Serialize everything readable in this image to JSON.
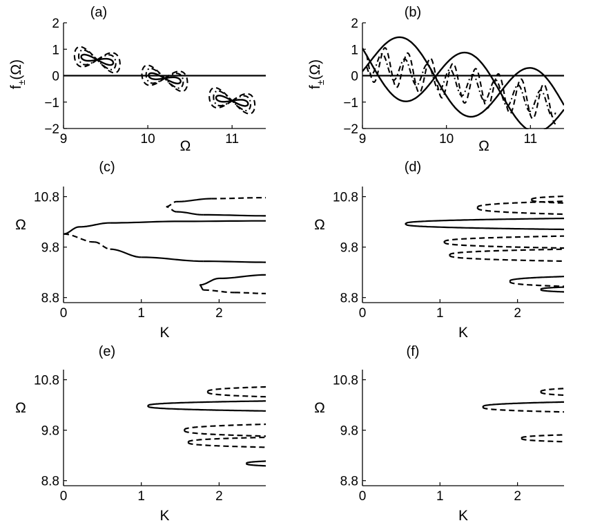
{
  "figure": {
    "panel_titles": [
      "(a)",
      "(b)",
      "(c)",
      "(d)",
      "(e)",
      "(f)"
    ]
  },
  "chart_data": [
    {
      "id": "a",
      "type": "line",
      "title": "(a)",
      "xlabel": "Ω",
      "ylabel": "f±(Ω)",
      "ylabel_main": "f",
      "ylabel_sub": "±",
      "ylabel_arg": "(Ω)",
      "xlim": [
        9,
        11.4
      ],
      "ylim": [
        -2,
        2
      ],
      "xticks": [
        9,
        10,
        11
      ],
      "yticks": [
        -2,
        -1,
        0,
        1,
        2
      ],
      "xtick_labels": [
        "9",
        "10",
        "11"
      ],
      "ytick_labels": [
        "−2",
        "−1",
        "0",
        "1",
        "2"
      ],
      "zero_line": true,
      "series": [
        {
          "name": "loop 1 solid",
          "style": "solid",
          "kind": "figure8",
          "cx": 9.4,
          "cy": 0.6,
          "ax": 0.19,
          "ay": 0.22,
          "tilt": -0.6
        },
        {
          "name": "loop 1 dash-dot",
          "style": "dashdot",
          "kind": "figure8",
          "cx": 9.4,
          "cy": 0.6,
          "ax": 0.22,
          "ay": 0.55,
          "tilt": -0.6
        },
        {
          "name": "loop 1 dashed",
          "style": "dashed",
          "kind": "figure8",
          "cx": 9.4,
          "cy": 0.6,
          "ax": 0.27,
          "ay": 0.75,
          "tilt": -0.6
        },
        {
          "name": "loop 2 solid",
          "style": "solid",
          "kind": "figure8",
          "cx": 10.2,
          "cy": -0.1,
          "ax": 0.19,
          "ay": 0.22,
          "tilt": -0.6
        },
        {
          "name": "loop 2 dash-dot",
          "style": "dashdot",
          "kind": "figure8",
          "cx": 10.2,
          "cy": -0.1,
          "ax": 0.22,
          "ay": 0.55,
          "tilt": -0.6
        },
        {
          "name": "loop 2 dashed",
          "style": "dashed",
          "kind": "figure8",
          "cx": 10.2,
          "cy": -0.1,
          "ax": 0.27,
          "ay": 0.75,
          "tilt": -0.6
        },
        {
          "name": "loop 3 solid",
          "style": "solid",
          "kind": "figure8",
          "cx": 11.0,
          "cy": -0.95,
          "ax": 0.19,
          "ay": 0.22,
          "tilt": -0.6
        },
        {
          "name": "loop 3 dash-dot",
          "style": "dashdot",
          "kind": "figure8",
          "cx": 11.0,
          "cy": -0.95,
          "ax": 0.22,
          "ay": 0.55,
          "tilt": -0.6
        },
        {
          "name": "loop 3 dashed",
          "style": "dashed",
          "kind": "figure8",
          "cx": 11.0,
          "cy": -0.95,
          "ax": 0.27,
          "ay": 0.75,
          "tilt": -0.6
        }
      ]
    },
    {
      "id": "b",
      "type": "line",
      "title": "(b)",
      "xlabel": "Ω",
      "ylabel": "f±(Ω)",
      "ylabel_main": "f",
      "ylabel_sub": "±",
      "ylabel_arg": "(Ω)",
      "xlim": [
        9,
        11.4
      ],
      "ylim": [
        -2,
        2
      ],
      "xticks": [
        9,
        10,
        11
      ],
      "yticks": [
        -2,
        -1,
        0,
        1,
        2
      ],
      "xtick_labels": [
        "9",
        "10",
        "11"
      ],
      "ytick_labels": [
        "−2",
        "−1",
        "0",
        "1",
        "2"
      ],
      "zero_line": true,
      "series": [
        {
          "name": "f+ solid",
          "style": "solid",
          "kind": "wave",
          "x0": 9.0,
          "x1": 11.4,
          "a": 0.6,
          "b": -1.2,
          "amp": 1.2,
          "period": 1.55,
          "phase": 1.2
        },
        {
          "name": "f- solid",
          "style": "solid",
          "kind": "wave",
          "x0": 9.0,
          "x1": 11.4,
          "a": 0.6,
          "b": -1.2,
          "amp": -1.2,
          "period": 1.55,
          "phase": 1.2
        },
        {
          "name": "dashed oscillation",
          "style": "dashed",
          "kind": "wave",
          "x0": 9.05,
          "x1": 11.3,
          "a": 0.55,
          "b": -1.2,
          "amp": 0.7,
          "period": 0.27,
          "phase": 0
        },
        {
          "name": "dash-dot oscillation",
          "style": "dashdot",
          "kind": "wave",
          "x0": 9.05,
          "x1": 11.3,
          "a": 0.55,
          "b": -1.2,
          "amp": 0.45,
          "period": 0.27,
          "phase": 0.8
        }
      ]
    },
    {
      "id": "c",
      "type": "line",
      "title": "(c)",
      "xlabel": "K",
      "ylabel": "Ω",
      "xlim": [
        0,
        2.6
      ],
      "ylim": [
        8.7,
        11.0
      ],
      "xticks": [
        0,
        1,
        2
      ],
      "yticks": [
        8.8,
        9.8,
        10.8
      ],
      "xtick_labels": [
        "0",
        "1",
        "2"
      ],
      "ytick_labels": [
        "8.8",
        "9.8",
        "10.8"
      ],
      "branches": [
        {
          "name": "branch 1",
          "points": [
            {
              "k": 0.0,
              "w": 10.06,
              "s": "solid"
            },
            {
              "k": 0.2,
              "w": 10.2,
              "s": "solid"
            },
            {
              "k": 0.6,
              "w": 10.28,
              "s": "solid"
            },
            {
              "k": 1.5,
              "w": 10.31,
              "s": "solid"
            },
            {
              "k": 2.6,
              "w": 10.32,
              "s": "solid"
            }
          ]
        },
        {
          "name": "branch 2",
          "points": [
            {
              "k": 0.0,
              "w": 10.06,
              "s": "dashed"
            },
            {
              "k": 0.4,
              "w": 9.9,
              "s": "dashed"
            },
            {
              "k": 0.6,
              "w": 9.76,
              "s": "solid"
            },
            {
              "k": 1.0,
              "w": 9.6,
              "s": "solid"
            },
            {
              "k": 1.8,
              "w": 9.52,
              "s": "solid"
            },
            {
              "k": 2.6,
              "w": 9.5,
              "s": "solid"
            }
          ]
        },
        {
          "name": "branch 3",
          "points": [
            {
              "k": 2.6,
              "w": 10.42,
              "s": "solid"
            },
            {
              "k": 1.8,
              "w": 10.44,
              "s": "solid"
            },
            {
              "k": 1.45,
              "w": 10.5,
              "s": "dashed"
            },
            {
              "k": 1.32,
              "w": 10.6,
              "s": "dashed"
            },
            {
              "k": 1.45,
              "w": 10.7,
              "s": "solid"
            },
            {
              "k": 1.9,
              "w": 10.76,
              "s": "dashed"
            },
            {
              "k": 2.6,
              "w": 10.78,
              "s": "dashed"
            }
          ]
        },
        {
          "name": "branch 4",
          "points": [
            {
              "k": 2.6,
              "w": 9.25,
              "s": "solid"
            },
            {
              "k": 2.0,
              "w": 9.18,
              "s": "solid"
            },
            {
              "k": 1.75,
              "w": 9.05,
              "s": "solid"
            },
            {
              "k": 1.8,
              "w": 8.95,
              "s": "dashed"
            },
            {
              "k": 2.2,
              "w": 8.9,
              "s": "dashed"
            },
            {
              "k": 2.6,
              "w": 8.88,
              "s": "dashed"
            }
          ]
        }
      ]
    },
    {
      "id": "d",
      "type": "line",
      "title": "(d)",
      "xlabel": "K",
      "ylabel": "Ω",
      "xlim": [
        0,
        2.6
      ],
      "ylim": [
        8.7,
        11.0
      ],
      "xticks": [
        0,
        1,
        2
      ],
      "yticks": [
        8.8,
        9.8,
        10.8
      ],
      "xtick_labels": [
        "0",
        "1",
        "2"
      ],
      "ytick_labels": [
        "8.8",
        "9.8",
        "10.8"
      ],
      "turns": [
        {
          "k0": 0.55,
          "w": 10.26,
          "h": 0.11,
          "upper": "solid",
          "lower": "solid"
        },
        {
          "k0": 1.48,
          "w": 10.58,
          "h": 0.13,
          "upper": "dashed",
          "lower": "dashed"
        },
        {
          "k0": 1.05,
          "w": 9.9,
          "h": 0.12,
          "upper": "dashed",
          "lower": "dashed"
        },
        {
          "k0": 1.12,
          "w": 9.64,
          "h": 0.12,
          "upper": "dashed",
          "lower": "dashed"
        },
        {
          "k0": 1.9,
          "w": 9.12,
          "h": 0.1,
          "upper": "solid",
          "lower": "dashed"
        },
        {
          "k0": 2.18,
          "w": 10.74,
          "h": 0.07,
          "upper": "dashed",
          "lower": "dashed"
        },
        {
          "k0": 2.3,
          "w": 8.96,
          "h": 0.05,
          "upper": "solid",
          "lower": "solid"
        }
      ]
    },
    {
      "id": "e",
      "type": "line",
      "title": "(e)",
      "xlabel": "K",
      "ylabel": "Ω",
      "xlim": [
        0,
        2.6
      ],
      "ylim": [
        8.7,
        11.0
      ],
      "xticks": [
        0,
        1,
        2
      ],
      "yticks": [
        8.8,
        9.8,
        10.8
      ],
      "xtick_labels": [
        "0",
        "1",
        "2"
      ],
      "ytick_labels": [
        "8.8",
        "9.8",
        "10.8"
      ],
      "turns": [
        {
          "k0": 1.08,
          "w": 10.28,
          "h": 0.1,
          "upper": "solid",
          "lower": "solid"
        },
        {
          "k0": 1.85,
          "w": 10.56,
          "h": 0.1,
          "upper": "dashed",
          "lower": "dashed"
        },
        {
          "k0": 1.55,
          "w": 9.8,
          "h": 0.12,
          "upper": "dashed",
          "lower": "dashed"
        },
        {
          "k0": 1.6,
          "w": 9.56,
          "h": 0.1,
          "upper": "dashed",
          "lower": "dashed"
        },
        {
          "k0": 2.35,
          "w": 9.14,
          "h": 0.05,
          "upper": "solid",
          "lower": "solid"
        }
      ]
    },
    {
      "id": "f",
      "type": "line",
      "title": "(f)",
      "xlabel": "K",
      "ylabel": "Ω",
      "xlim": [
        0,
        2.6
      ],
      "ylim": [
        8.7,
        11.0
      ],
      "xticks": [
        0,
        1,
        2
      ],
      "yticks": [
        8.8,
        9.8,
        10.8
      ],
      "xtick_labels": [
        "0",
        "1",
        "2"
      ],
      "ytick_labels": [
        "8.8",
        "9.8",
        "10.8"
      ],
      "turns": [
        {
          "k0": 1.55,
          "w": 10.26,
          "h": 0.1,
          "upper": "solid",
          "lower": "dashed"
        },
        {
          "k0": 2.3,
          "w": 10.56,
          "h": 0.07,
          "upper": "dashed",
          "lower": "dashed"
        },
        {
          "k0": 2.05,
          "w": 9.64,
          "h": 0.07,
          "upper": "dashed",
          "lower": "dashed"
        }
      ]
    }
  ]
}
